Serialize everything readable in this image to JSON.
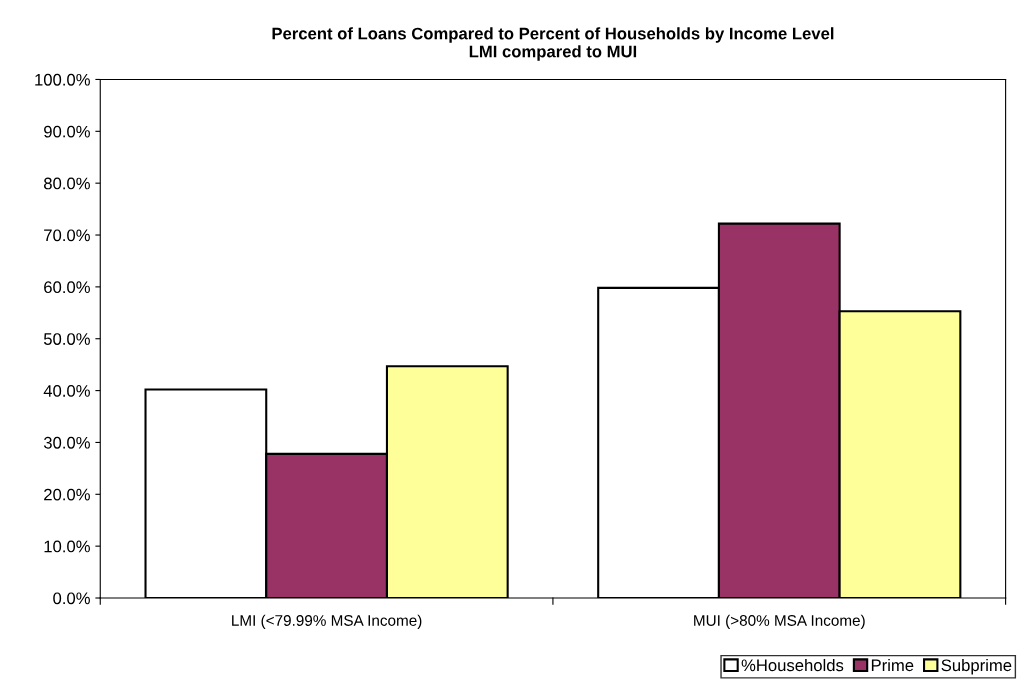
{
  "chart_data": {
    "type": "bar",
    "title": "Percent of Loans Compared to Percent of Households by Income Level\nLMI compared to MUI",
    "categories": [
      "LMI (<79.99% MSA Income)",
      "MUI (>80% MSA Income)"
    ],
    "series": [
      {
        "name": "%Households",
        "color": "#ffffff",
        "values": [
          40.2,
          59.8
        ]
      },
      {
        "name": "Prime",
        "color": "#993366",
        "values": [
          27.8,
          72.2
        ]
      },
      {
        "name": "Subprime",
        "color": "#ffff99",
        "values": [
          44.7,
          55.3
        ]
      }
    ],
    "ylim": [
      0,
      100
    ],
    "yticks": [
      {
        "value": 0,
        "label": "0.0%"
      },
      {
        "value": 10,
        "label": "10.0%"
      },
      {
        "value": 20,
        "label": "20.0%"
      },
      {
        "value": 30,
        "label": "30.0%"
      },
      {
        "value": 40,
        "label": "40.0%"
      },
      {
        "value": 50,
        "label": "50.0%"
      },
      {
        "value": 60,
        "label": "60.0%"
      },
      {
        "value": 70,
        "label": "70.0%"
      },
      {
        "value": 80,
        "label": "80.0%"
      },
      {
        "value": 90,
        "label": "90.0%"
      },
      {
        "value": 100,
        "label": "100.0%"
      }
    ],
    "grid": false,
    "legend": "bottom right"
  }
}
